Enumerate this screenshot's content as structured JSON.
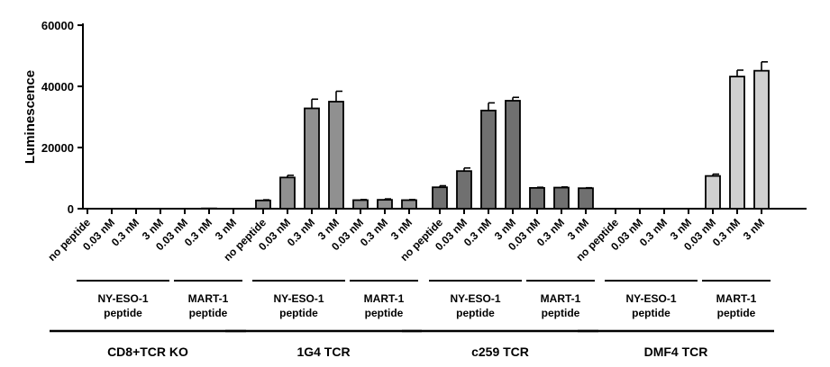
{
  "chart_data": {
    "type": "bar",
    "title": "",
    "xlabel": "",
    "ylabel": "Luminescence",
    "ylim": [
      0,
      60000
    ],
    "yticks": [
      "0",
      "20000",
      "40000",
      "60000"
    ],
    "grid": false,
    "categories": [
      "no peptide",
      "0.03 nM",
      "0.3 nM",
      "3 nM",
      "0.03 nM",
      "0.3 nM",
      "3 nM",
      "no peptide",
      "0.03 nM",
      "0.3 nM",
      "3 nM",
      "0.03 nM",
      "0.3 nM",
      "3 nM",
      "no peptide",
      "0.03 nM",
      "0.3 nM",
      "3 nM",
      "0.03 nM",
      "0.3 nM",
      "3 nM",
      "no peptide",
      "0.03 nM",
      "0.3 nM",
      "3 nM",
      "0.03 nM",
      "0.3 nM",
      "3 nM"
    ],
    "values": [
      0,
      0,
      0,
      0,
      0,
      100,
      0,
      2700,
      10200,
      32800,
      35000,
      2800,
      2900,
      2800,
      7000,
      12300,
      32100,
      35300,
      6800,
      6900,
      6700,
      0,
      0,
      0,
      0,
      10700,
      43200,
      45100
    ],
    "errors": [
      0,
      0,
      0,
      0,
      0,
      0,
      0,
      200,
      700,
      3000,
      3400,
      200,
      300,
      200,
      500,
      1000,
      2500,
      1100,
      200,
      200,
      150,
      0,
      0,
      0,
      0,
      600,
      2100,
      2900
    ],
    "bar_colors": [
      "#909090",
      "#707070",
      "#d0d0d0"
    ],
    "peptide_groups": [
      {
        "label": "NY-ESO-1\npeptide",
        "start": 0,
        "end": 3
      },
      {
        "label": "MART-1\npeptide",
        "start": 4,
        "end": 6
      },
      {
        "label": "NY-ESO-1\npeptide",
        "start": 7,
        "end": 10
      },
      {
        "label": "MART-1\npeptide",
        "start": 11,
        "end": 13
      },
      {
        "label": "NY-ESO-1\npeptide",
        "start": 14,
        "end": 17
      },
      {
        "label": "MART-1\npeptide",
        "start": 18,
        "end": 20
      },
      {
        "label": "NY-ESO-1\npeptide",
        "start": 21,
        "end": 24
      },
      {
        "label": "MART-1\npeptide",
        "start": 25,
        "end": 27
      }
    ],
    "cell_groups": [
      {
        "label": "CD8+TCR KO",
        "start": 0,
        "end": 6
      },
      {
        "label": "1G4 TCR",
        "start": 7,
        "end": 13
      },
      {
        "label": "c259 TCR",
        "start": 14,
        "end": 20
      },
      {
        "label": "DMF4 TCR",
        "start": 21,
        "end": 27
      }
    ]
  }
}
